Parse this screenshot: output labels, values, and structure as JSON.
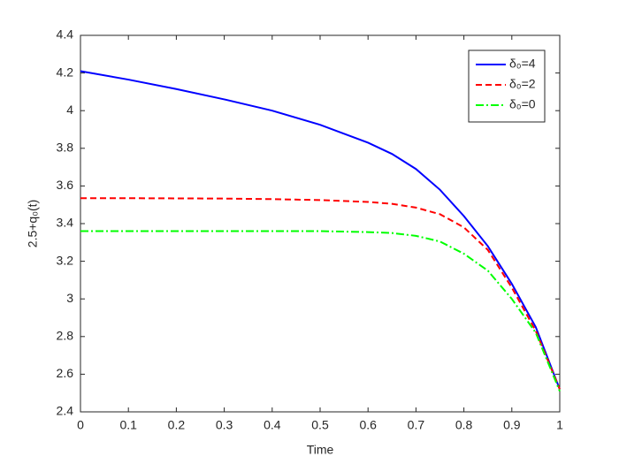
{
  "chart_data": {
    "type": "line",
    "x_label": "Time",
    "y_label": "2.5+q₀(t)",
    "x": [
      0,
      0.1,
      0.2,
      0.3,
      0.4,
      0.5,
      0.6,
      0.65,
      0.7,
      0.75,
      0.8,
      0.85,
      0.9,
      0.95,
      1
    ],
    "series": [
      {
        "name": "δ₀=4",
        "color": "#0000ff",
        "dash": "solid",
        "values": [
          4.21,
          4.165,
          4.115,
          4.06,
          4.0,
          3.925,
          3.83,
          3.77,
          3.69,
          3.58,
          3.44,
          3.28,
          3.08,
          2.85,
          2.52
        ]
      },
      {
        "name": "δ₀=2",
        "color": "#ff0000",
        "dash": "dashed",
        "values": [
          3.535,
          3.535,
          3.534,
          3.533,
          3.53,
          3.525,
          3.515,
          3.505,
          3.485,
          3.45,
          3.38,
          3.26,
          3.06,
          2.83,
          2.52
        ]
      },
      {
        "name": "δ₀=0",
        "color": "#00ff00",
        "dash": "dashdot",
        "values": [
          3.36,
          3.36,
          3.36,
          3.36,
          3.36,
          3.36,
          3.355,
          3.35,
          3.335,
          3.305,
          3.24,
          3.15,
          3.0,
          2.82,
          2.51
        ]
      }
    ],
    "xlim": [
      0,
      1
    ],
    "xticks": [
      0,
      0.1,
      0.2,
      0.3,
      0.4,
      0.5,
      0.6,
      0.7,
      0.8,
      0.9,
      1
    ],
    "ylim": [
      2.4,
      4.4
    ],
    "yticks": [
      2.4,
      2.6,
      2.8,
      3,
      3.2,
      3.4,
      3.6,
      3.8,
      4,
      4.2,
      4.4
    ],
    "legend": "upper-right",
    "grid": false
  }
}
